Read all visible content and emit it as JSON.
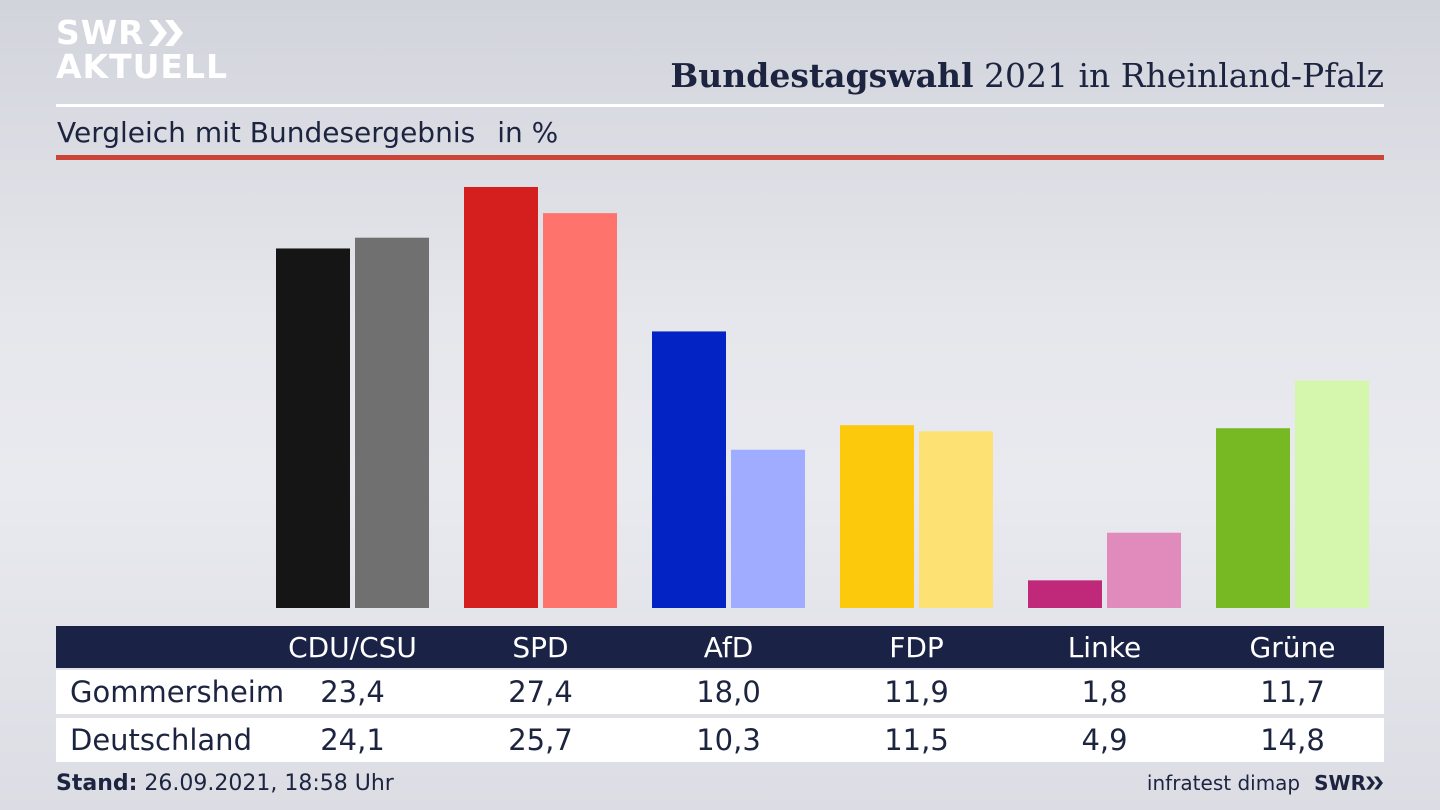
{
  "branding": {
    "logo_line1": "SWR",
    "logo_line2": "AKTUELL",
    "footer_source": "infratest dimap",
    "footer_logo": "SWR"
  },
  "header": {
    "title_bold": "Bundestagswahl",
    "title_rest": "2021 in Rheinland-Pfalz",
    "subtitle": "Vergleich mit Bundesergebnis",
    "unit": "in %"
  },
  "footer": {
    "stand_label": "Stand:",
    "stand_value": "26.09.2021, 18:58 Uhr"
  },
  "colors": {
    "header_bar": "#1a2346",
    "accent_rule": "#cc4438"
  },
  "chart_data": {
    "type": "bar",
    "categories": [
      "CDU/CSU",
      "SPD",
      "AfD",
      "FDP",
      "Linke",
      "Grüne"
    ],
    "series": [
      {
        "name": "Gommersheim",
        "values": [
          23.4,
          27.4,
          18.0,
          11.9,
          1.8,
          11.7
        ],
        "labels": [
          "23,4",
          "27,4",
          "18,0",
          "11,9",
          "1,8",
          "11,7"
        ],
        "colors": [
          "#151515",
          "#d51f1f",
          "#0423c5",
          "#fdc90d",
          "#c0287a",
          "#76b923"
        ]
      },
      {
        "name": "Deutschland",
        "values": [
          24.1,
          25.7,
          10.3,
          11.5,
          4.9,
          14.8
        ],
        "labels": [
          "24,1",
          "25,7",
          "10,3",
          "11,5",
          "4,9",
          "14,8"
        ],
        "colors": [
          "#717070",
          "#fe736c",
          "#a0acff",
          "#fde172",
          "#e08bbb",
          "#d5f7ad"
        ]
      }
    ],
    "ylim": [
      0,
      27.4
    ]
  }
}
